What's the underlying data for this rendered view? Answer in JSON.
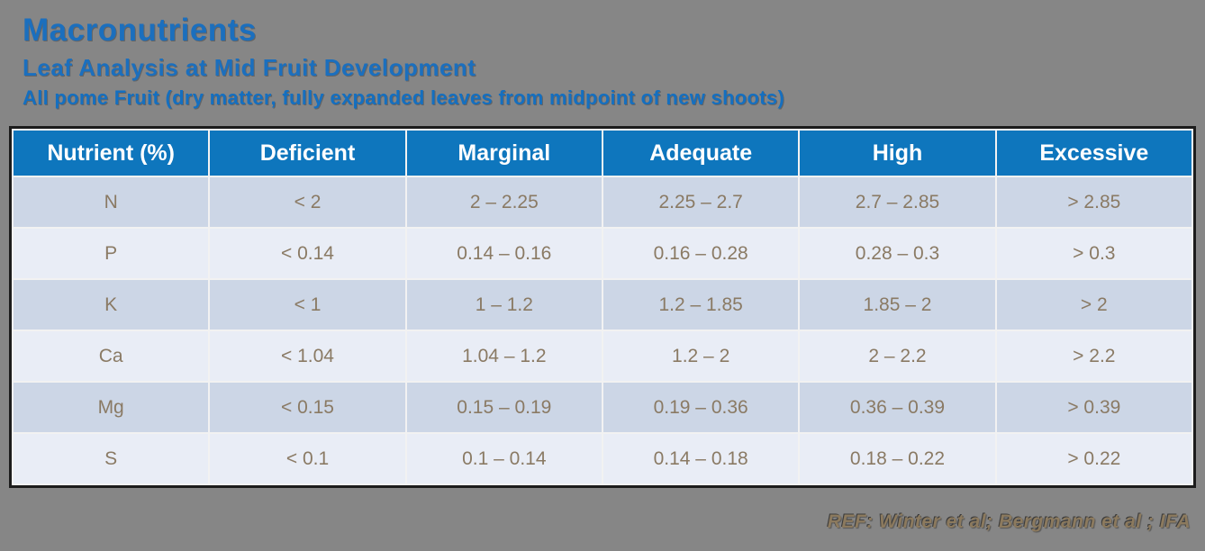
{
  "slide": {
    "title": "Macronutrients",
    "subtitle": "Leaf Analysis at Mid Fruit Development",
    "subtitle2": "All pome Fruit (dry matter, fully expanded leaves from midpoint of new shoots)",
    "reference": "REF: Winter et al; Bergmann et al ; IFA"
  },
  "table": {
    "headers": [
      "Nutrient (%)",
      "Deficient",
      "Marginal",
      "Adequate",
      "High",
      "Excessive"
    ],
    "rows": [
      [
        "N",
        "< 2",
        "2 – 2.25",
        "2.25 – 2.7",
        "2.7 – 2.85",
        "> 2.85"
      ],
      [
        "P",
        "< 0.14",
        "0.14 – 0.16",
        "0.16 – 0.28",
        "0.28 – 0.3",
        "> 0.3"
      ],
      [
        "K",
        "< 1",
        "1 – 1.2",
        "1.2 – 1.85",
        "1.85 – 2",
        "> 2"
      ],
      [
        "Ca",
        "< 1.04",
        "1.04 – 1.2",
        "1.2 – 2",
        "2 – 2.2",
        "> 2.2"
      ],
      [
        "Mg",
        "< 0.15",
        "0.15 – 0.19",
        "0.19 – 0.36",
        "0.36 – 0.39",
        "> 0.39"
      ],
      [
        "S",
        "< 0.1",
        "0.1 – 0.14",
        "0.14 – 0.18",
        "0.18 – 0.22",
        "> 0.22"
      ]
    ]
  },
  "colors": {
    "background": "#868686",
    "title_blue": "#1b6fbe",
    "header_bg": "#0e76bd",
    "header_text": "#ffffff",
    "row_dark": "#ccd6e6",
    "row_light": "#e9edf6",
    "cell_text": "#8a7a64",
    "table_border": "#1c1c1c",
    "reference_text": "#8c7a5e"
  }
}
